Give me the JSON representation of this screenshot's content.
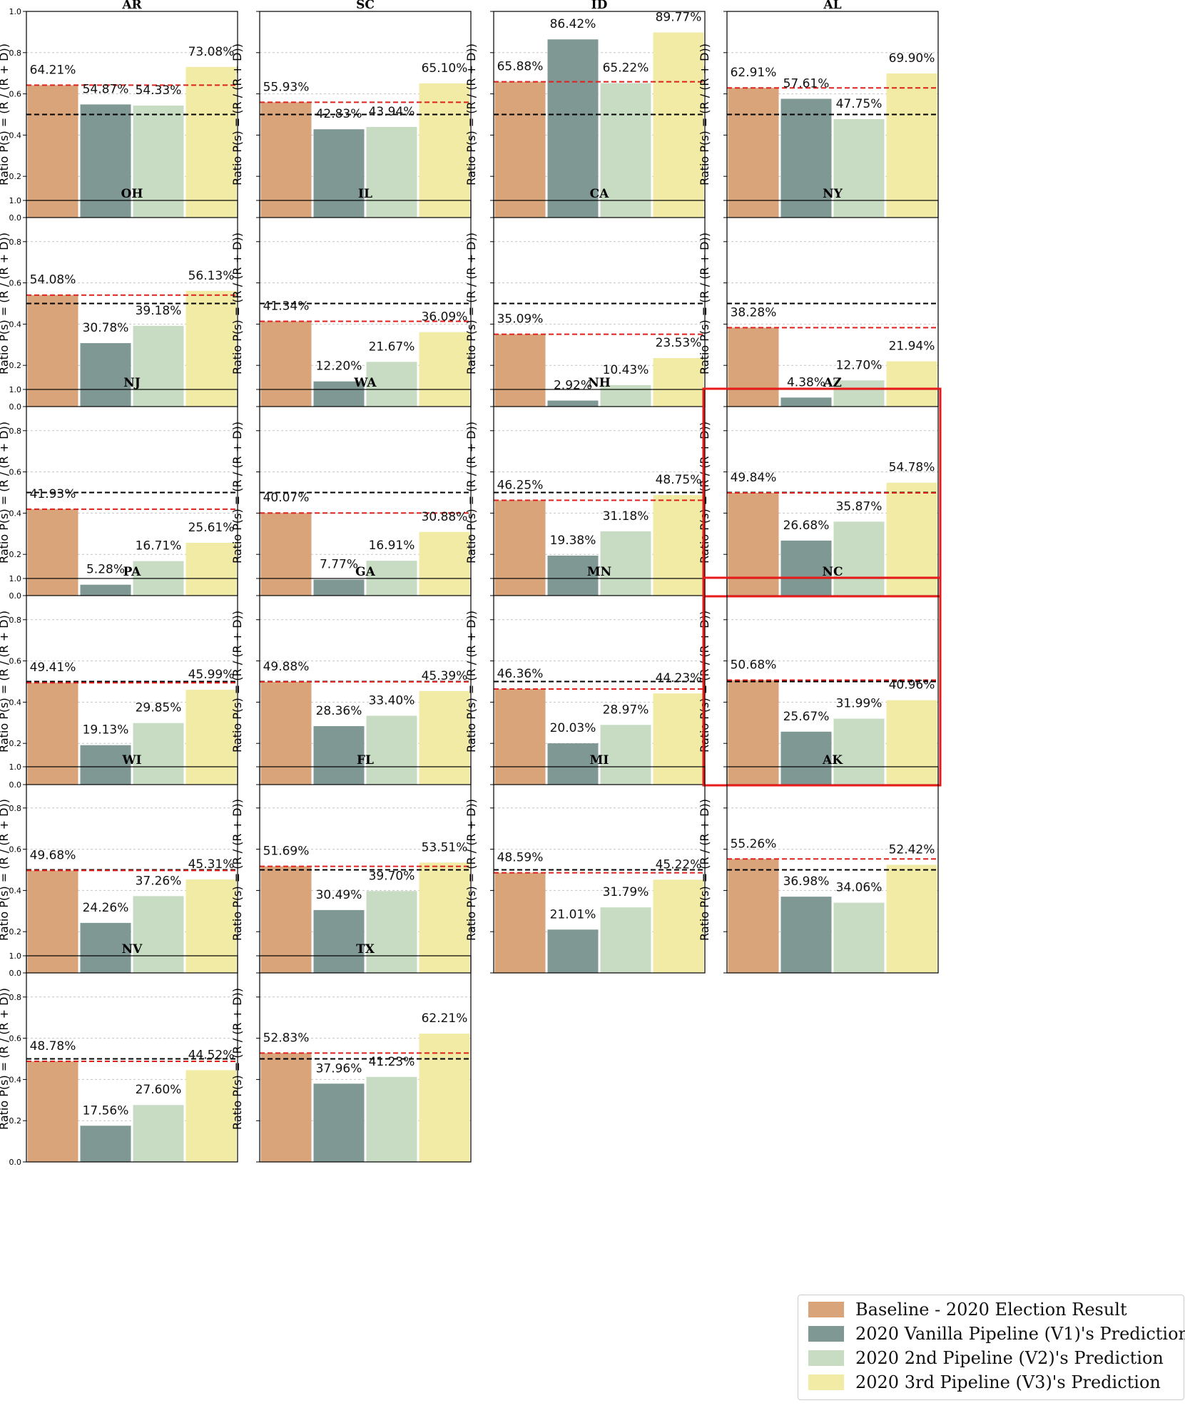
{
  "colors": {
    "baseline": "#d9a47a",
    "v1": "#7f9894",
    "v2": "#c8dcc4",
    "v3": "#f2eba6",
    "threshold_line": "#000000",
    "baseline_line": "#e0201c",
    "highlight": "#e81a1a"
  },
  "legend": [
    {
      "key": "baseline",
      "label": "Baseline - 2020 Election Result"
    },
    {
      "key": "v1",
      "label": "2020 Vanilla Pipeline (V1)'s Prediction"
    },
    {
      "key": "v2",
      "label": "2020 2nd Pipeline (V2)'s Prediction"
    },
    {
      "key": "v3",
      "label": "2020 3rd Pipeline (V3)'s Prediction"
    }
  ],
  "chart_data": {
    "type": "bar",
    "ylabel": "Ratio P(s) = (R / (R + D))",
    "ylim": [
      0,
      1.0
    ],
    "yticks": [
      "0.0",
      "0.2",
      "0.4",
      "0.6",
      "0.8",
      "1.0"
    ],
    "threshold": 0.5,
    "series_names": [
      "Baseline - 2020 Election Result",
      "2020 Vanilla Pipeline (V1)'s Prediction",
      "2020 2nd Pipeline (V2)'s Prediction",
      "2020 3rd Pipeline (V3)'s Prediction"
    ],
    "panels": [
      {
        "state": "AR",
        "values": [
          64.21,
          54.87,
          54.33,
          73.08
        ],
        "labels": [
          "64.21%",
          "54.87%",
          "54.33%",
          "73.08%"
        ],
        "highlight": false
      },
      {
        "state": "SC",
        "values": [
          55.93,
          42.83,
          43.94,
          65.1
        ],
        "labels": [
          "55.93%",
          "42.83%",
          "43.94%",
          "65.10%"
        ],
        "highlight": false
      },
      {
        "state": "ID",
        "values": [
          65.88,
          86.42,
          65.22,
          89.77
        ],
        "labels": [
          "65.88%",
          "86.42%",
          "65.22%",
          "89.77%"
        ],
        "highlight": false
      },
      {
        "state": "AL",
        "values": [
          62.91,
          57.61,
          47.75,
          69.9
        ],
        "labels": [
          "62.91%",
          "57.61%",
          "47.75%",
          "69.90%"
        ],
        "highlight": false
      },
      {
        "state": "OH",
        "values": [
          54.08,
          30.78,
          39.18,
          56.13
        ],
        "labels": [
          "54.08%",
          "30.78%",
          "39.18%",
          "56.13%"
        ],
        "highlight": false
      },
      {
        "state": "IL",
        "values": [
          41.34,
          12.2,
          21.67,
          36.09
        ],
        "labels": [
          "41.34%",
          "12.20%",
          "21.67%",
          "36.09%"
        ],
        "highlight": false
      },
      {
        "state": "CA",
        "values": [
          35.09,
          2.92,
          10.43,
          23.53
        ],
        "labels": [
          "35.09%",
          "2.92%",
          "10.43%",
          "23.53%"
        ],
        "highlight": false
      },
      {
        "state": "NY",
        "values": [
          38.28,
          4.38,
          12.7,
          21.94
        ],
        "labels": [
          "38.28%",
          "4.38%",
          "12.70%",
          "21.94%"
        ],
        "highlight": false
      },
      {
        "state": "NJ",
        "values": [
          41.93,
          5.28,
          16.71,
          25.61
        ],
        "labels": [
          "41.93%",
          "5.28%",
          "16.71%",
          "25.61%"
        ],
        "highlight": false
      },
      {
        "state": "WA",
        "values": [
          40.07,
          7.77,
          16.91,
          30.88
        ],
        "labels": [
          "40.07%",
          "7.77%",
          "16.91%",
          "30.88%"
        ],
        "highlight": false
      },
      {
        "state": "NH",
        "values": [
          46.25,
          19.38,
          31.18,
          48.75
        ],
        "labels": [
          "46.25%",
          "19.38%",
          "31.18%",
          "48.75%"
        ],
        "highlight": false
      },
      {
        "state": "AZ",
        "values": [
          49.84,
          26.68,
          35.87,
          54.78
        ],
        "labels": [
          "49.84%",
          "26.68%",
          "35.87%",
          "54.78%"
        ],
        "highlight": true
      },
      {
        "state": "PA",
        "values": [
          49.41,
          19.13,
          29.85,
          45.99
        ],
        "labels": [
          "49.41%",
          "19.13%",
          "29.85%",
          "45.99%"
        ],
        "highlight": false
      },
      {
        "state": "GA",
        "values": [
          49.88,
          28.36,
          33.4,
          45.39
        ],
        "labels": [
          "49.88%",
          "28.36%",
          "33.40%",
          "45.39%"
        ],
        "highlight": false
      },
      {
        "state": "MN",
        "values": [
          46.36,
          20.03,
          28.97,
          44.23
        ],
        "labels": [
          "46.36%",
          "20.03%",
          "28.97%",
          "44.23%"
        ],
        "highlight": false
      },
      {
        "state": "NC",
        "values": [
          50.68,
          25.67,
          31.99,
          40.96
        ],
        "labels": [
          "50.68%",
          "25.67%",
          "31.99%",
          "40.96%"
        ],
        "highlight": true
      },
      {
        "state": "WI",
        "values": [
          49.68,
          24.26,
          37.26,
          45.31
        ],
        "labels": [
          "49.68%",
          "24.26%",
          "37.26%",
          "45.31%"
        ],
        "highlight": false
      },
      {
        "state": "FL",
        "values": [
          51.69,
          30.49,
          39.7,
          53.51
        ],
        "labels": [
          "51.69%",
          "30.49%",
          "39.70%",
          "53.51%"
        ],
        "highlight": false
      },
      {
        "state": "MI",
        "values": [
          48.59,
          21.01,
          31.79,
          45.22
        ],
        "labels": [
          "48.59%",
          "21.01%",
          "31.79%",
          "45.22%"
        ],
        "highlight": false
      },
      {
        "state": "AK",
        "values": [
          55.26,
          36.98,
          34.06,
          52.42
        ],
        "labels": [
          "55.26%",
          "36.98%",
          "34.06%",
          "52.42%"
        ],
        "highlight": false
      },
      {
        "state": "NV",
        "values": [
          48.78,
          17.56,
          27.6,
          44.52
        ],
        "labels": [
          "48.78%",
          "17.56%",
          "27.60%",
          "44.52%"
        ],
        "highlight": false
      },
      {
        "state": "TX",
        "values": [
          52.83,
          37.96,
          41.23,
          62.21
        ],
        "labels": [
          "52.83%",
          "37.96%",
          "41.23%",
          "62.21%"
        ],
        "highlight": false
      }
    ]
  }
}
